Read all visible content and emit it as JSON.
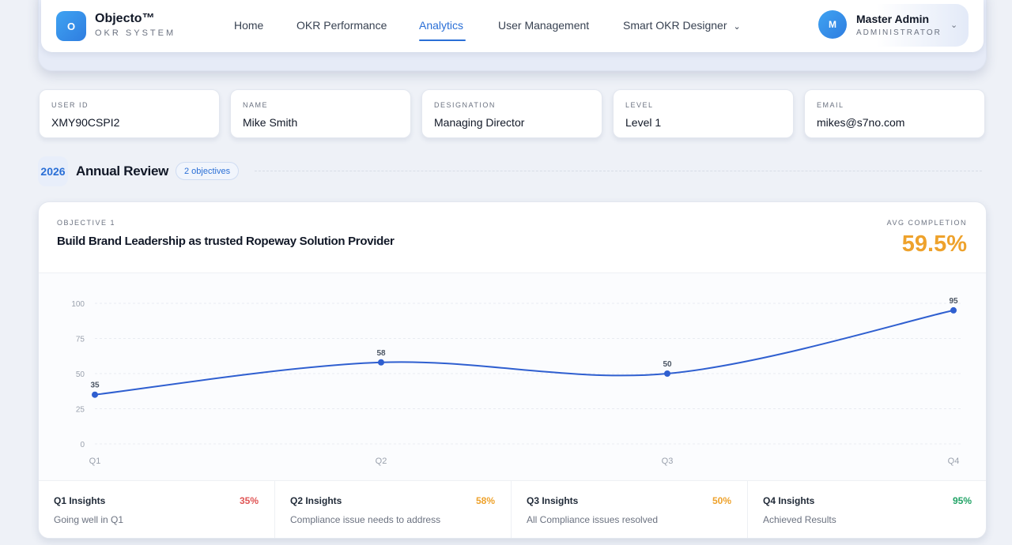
{
  "brand": {
    "logo_letter": "O",
    "name": "Objecto™",
    "subtitle": "OKR SYSTEM"
  },
  "nav": {
    "items": [
      {
        "label": "Home"
      },
      {
        "label": "OKR Performance"
      },
      {
        "label": "Analytics",
        "active": true
      },
      {
        "label": "User Management"
      },
      {
        "label": "Smart OKR Designer",
        "has_dropdown": true
      }
    ]
  },
  "user": {
    "avatar_letter": "M",
    "name": "Master Admin",
    "role": "ADMINISTRATOR"
  },
  "profile": [
    {
      "label": "USER ID",
      "value": "XMY90CSPI2"
    },
    {
      "label": "NAME",
      "value": "Mike Smith"
    },
    {
      "label": "DESIGNATION",
      "value": "Managing Director"
    },
    {
      "label": "LEVEL",
      "value": "Level 1"
    },
    {
      "label": "EMAIL",
      "value": "mikes@s7no.com"
    }
  ],
  "review": {
    "year": "2026",
    "title": "Annual Review",
    "objectives_count": "2 objectives"
  },
  "objective": {
    "label": "OBJECTIVE 1",
    "title": "Build Brand Leadership as trusted Ropeway Solution Provider",
    "avg_label": "AVG COMPLETION",
    "avg_value": "59.5%"
  },
  "colors": {
    "accent": "#2a6fd6",
    "line": "#2f5fd0",
    "low": "#e05555",
    "mid": "#eea22c",
    "high": "#21a366"
  },
  "chart_data": {
    "type": "line",
    "categories": [
      "Q1",
      "Q2",
      "Q3",
      "Q4"
    ],
    "values": [
      35,
      58,
      50,
      95
    ],
    "data_labels": [
      "35",
      "58",
      "50",
      "95"
    ],
    "y_ticks": [
      "0",
      "25",
      "50",
      "75",
      "100"
    ],
    "ylim": [
      0,
      100
    ],
    "grid": true
  },
  "insights": [
    {
      "title": "Q1 Insights",
      "percent": "35%",
      "note": "Going well in Q1",
      "status": "low"
    },
    {
      "title": "Q2 Insights",
      "percent": "58%",
      "note": "Compliance issue needs to address",
      "status": "mid"
    },
    {
      "title": "Q3 Insights",
      "percent": "50%",
      "note": "All Compliance issues resolved",
      "status": "mid"
    },
    {
      "title": "Q4 Insights",
      "percent": "95%",
      "note": "Achieved Results",
      "status": "high"
    }
  ]
}
